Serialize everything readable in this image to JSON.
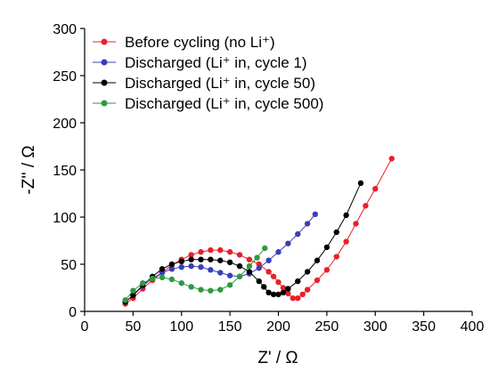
{
  "chart_data": {
    "type": "scatter",
    "title": "",
    "xlabel": "Z' / Ω",
    "ylabel": "-Z'' / Ω",
    "xlim": [
      0,
      400
    ],
    "ylim": [
      0,
      300
    ],
    "xticks": [
      0,
      50,
      100,
      150,
      200,
      250,
      300,
      350,
      400
    ],
    "yticks": [
      0,
      50,
      100,
      150,
      200,
      250,
      300
    ],
    "grid": false,
    "legend_position": "top-left",
    "series": [
      {
        "name": "Before cycling (no Li⁺)",
        "color": "#e8202a",
        "x": [
          42,
          50,
          60,
          70,
          80,
          90,
          100,
          110,
          120,
          130,
          140,
          150,
          160,
          170,
          180,
          190,
          195,
          200,
          205,
          210,
          215,
          220,
          225,
          230,
          240,
          250,
          260,
          270,
          280,
          290,
          300,
          317
        ],
        "y": [
          8,
          14,
          24,
          33,
          41,
          49,
          55,
          60,
          63,
          65,
          65,
          63,
          60,
          55,
          50,
          42,
          37,
          31,
          25,
          19,
          14,
          14,
          18,
          23,
          33,
          44,
          58,
          74,
          93,
          112,
          130,
          162
        ]
      },
      {
        "name": "Discharged (Li⁺ in, cycle 1)",
        "color": "#3a3fb8",
        "x": [
          42,
          50,
          60,
          70,
          80,
          90,
          100,
          110,
          120,
          130,
          140,
          150,
          160,
          170,
          180,
          190,
          200,
          210,
          220,
          230,
          238
        ],
        "y": [
          10,
          17,
          27,
          35,
          41,
          45,
          47,
          48,
          47,
          44,
          41,
          38,
          37,
          40,
          46,
          54,
          63,
          72,
          82,
          93,
          103
        ]
      },
      {
        "name": "Discharged (Li⁺ in, cycle 50)",
        "color": "#000000",
        "x": [
          42,
          50,
          60,
          70,
          80,
          90,
          100,
          110,
          120,
          130,
          140,
          150,
          160,
          170,
          180,
          185,
          190,
          195,
          200,
          205,
          210,
          220,
          230,
          240,
          250,
          260,
          270,
          285
        ],
        "y": [
          10,
          17,
          28,
          37,
          45,
          50,
          53,
          55,
          55,
          55,
          54,
          52,
          48,
          42,
          32,
          26,
          20,
          18,
          18,
          20,
          24,
          32,
          42,
          54,
          68,
          84,
          102,
          136
        ]
      },
      {
        "name": "Discharged (Li⁺ in, cycle 500)",
        "color": "#2e9a3e",
        "x": [
          42,
          50,
          60,
          70,
          80,
          90,
          100,
          110,
          120,
          130,
          140,
          150,
          160,
          170,
          178,
          186
        ],
        "y": [
          12,
          22,
          30,
          35,
          36,
          34,
          30,
          26,
          23,
          22,
          23,
          28,
          37,
          48,
          57,
          67
        ]
      }
    ]
  }
}
